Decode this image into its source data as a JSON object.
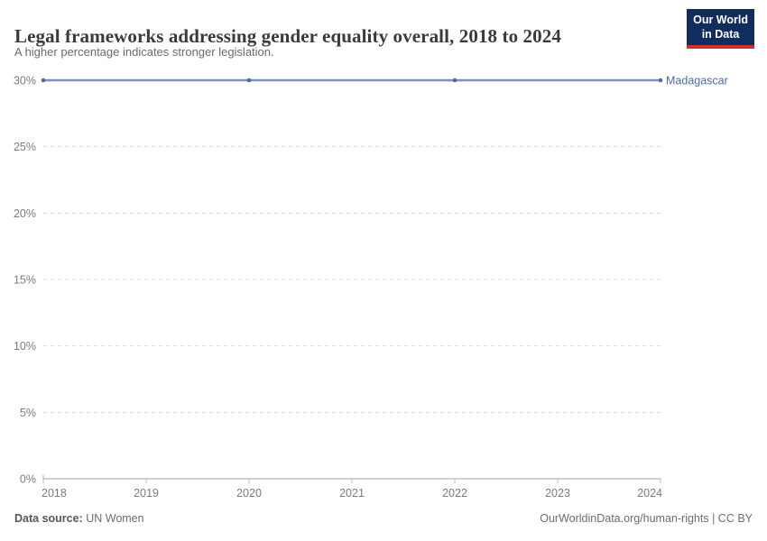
{
  "header": {
    "title": "Legal frameworks addressing gender equality overall, 2018 to 2024",
    "subtitle": "A higher percentage indicates stronger legislation.",
    "logo": {
      "line1": "Our World",
      "line2": "in Data",
      "bg_color": "#102d5e",
      "accent_color": "#d22c2c"
    }
  },
  "chart_data": {
    "type": "line",
    "title": "Legal frameworks addressing gender equality overall, 2018 to 2024",
    "subtitle": "A higher percentage indicates stronger legislation.",
    "xlabel": "",
    "ylabel": "",
    "xlim": [
      2018,
      2024
    ],
    "ylim": [
      0,
      30
    ],
    "grid": "horizontal-dashed",
    "legend_position": "end-of-line-label",
    "x_tick_values": [
      2018,
      2019,
      2020,
      2021,
      2022,
      2023,
      2024
    ],
    "x_tick_labels": [
      "2018",
      "2019",
      "2020",
      "2021",
      "2022",
      "2023",
      "2024"
    ],
    "y_tick_values": [
      0,
      5,
      10,
      15,
      20,
      25,
      30
    ],
    "y_tick_labels": [
      "0%",
      "5%",
      "10%",
      "15%",
      "20%",
      "25%",
      "30%"
    ],
    "series": [
      {
        "name": "Madagascar",
        "label_color": "#4c6a9c",
        "line_color": "#7b93b5",
        "marker_color": "#53699c",
        "x": [
          2018,
          2020,
          2022,
          2024
        ],
        "values": [
          30,
          30,
          30,
          30
        ]
      }
    ],
    "colors": {
      "gridline": "#dadada",
      "axis": "#a3a3a3",
      "tick": "#bdbdbd",
      "tick_label": "#7c7c7c"
    }
  },
  "footer": {
    "data_source_label": "Data source:",
    "data_source": "UN Women",
    "attribution": "OurWorldinData.org/human-rights | CC BY"
  }
}
